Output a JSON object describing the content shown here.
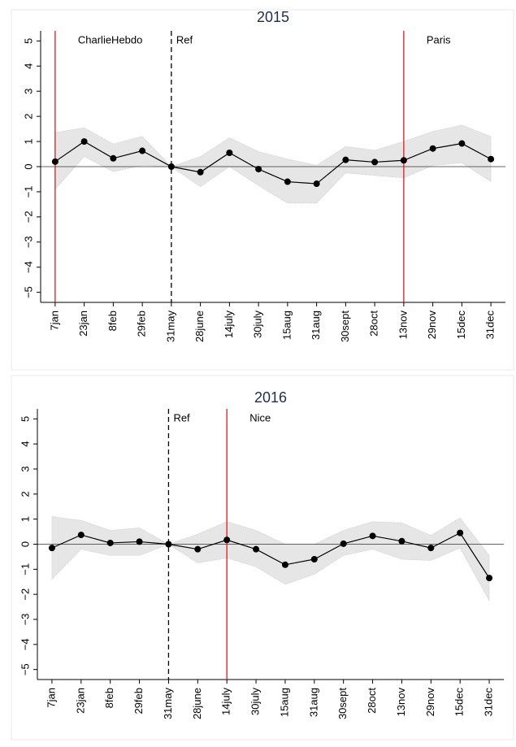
{
  "chart_data": [
    {
      "type": "line",
      "title": "2015",
      "categories": [
        "7jan",
        "23jan",
        "8feb",
        "29feb",
        "31may",
        "28june",
        "14july",
        "30july",
        "15aug",
        "31aug",
        "30sept",
        "28oct",
        "13nov",
        "29nov",
        "15dec",
        "31dec"
      ],
      "values": [
        0.2,
        1.0,
        0.33,
        0.63,
        0,
        -0.22,
        0.55,
        -0.1,
        -0.6,
        -0.68,
        0.27,
        0.18,
        0.25,
        0.72,
        0.92,
        0.3
      ],
      "upper": [
        1.35,
        1.55,
        0.9,
        1.2,
        0,
        0.4,
        1.15,
        0.6,
        0.3,
        0.05,
        0.8,
        0.65,
        1.0,
        1.4,
        1.65,
        1.2
      ],
      "lower": [
        -0.9,
        0.4,
        -0.2,
        0.05,
        0,
        -0.8,
        0,
        -0.75,
        -1.45,
        -1.45,
        -0.25,
        -0.35,
        -0.45,
        0.05,
        0.15,
        -0.6
      ],
      "color": "#000000",
      "band_color": "#e6e6e6",
      "hline": 0,
      "ylim": [
        -5.4,
        5.4
      ],
      "yticks": [
        {
          "value": -5,
          "label": "−5"
        },
        {
          "value": -4,
          "label": "−4"
        },
        {
          "value": -3,
          "label": "−3"
        },
        {
          "value": -2,
          "label": "−2"
        },
        {
          "value": -1,
          "label": "−1"
        },
        0,
        1,
        2,
        3,
        4,
        5
      ],
      "annotations": [
        {
          "text": "CharlieHebdo",
          "at": "7jan",
          "color": "#e8161c",
          "style": "solid"
        },
        {
          "text": "Ref",
          "at": "31may",
          "color": "#000000",
          "style": "dashed"
        },
        {
          "text": "Paris",
          "at": "13nov",
          "color": "#e8161c",
          "style": "solid"
        }
      ]
    },
    {
      "type": "line",
      "title": "2016",
      "categories": [
        "7jan",
        "23jan",
        "8feb",
        "29feb",
        "31may",
        "28june",
        "14july",
        "30july",
        "15aug",
        "31aug",
        "30sept",
        "28oct",
        "13nov",
        "29nov",
        "15dec",
        "31dec"
      ],
      "values": [
        -0.15,
        0.37,
        0.05,
        0.1,
        0,
        -0.2,
        0.17,
        -0.2,
        -0.82,
        -0.6,
        0.02,
        0.33,
        0.12,
        -0.15,
        0.45,
        -1.35
      ],
      "upper": [
        1.1,
        0.95,
        0.55,
        0.65,
        0,
        0.4,
        0.9,
        0.55,
        0,
        0,
        0.55,
        0.9,
        0.85,
        0.35,
        1.05,
        -0.45
      ],
      "lower": [
        -1.4,
        -0.2,
        -0.45,
        -0.45,
        0,
        -0.75,
        -0.55,
        -0.9,
        -1.6,
        -1.2,
        -0.45,
        -0.2,
        -0.6,
        -0.65,
        -0.15,
        -2.25
      ],
      "color": "#000000",
      "band_color": "#e6e6e6",
      "hline": 0,
      "ylim": [
        -5.4,
        5.4
      ],
      "yticks": [
        {
          "value": -5,
          "label": "−5"
        },
        {
          "value": -4,
          "label": "−4"
        },
        {
          "value": -3,
          "label": "−3"
        },
        {
          "value": -2,
          "label": "−2"
        },
        {
          "value": -1,
          "label": "−1"
        },
        0,
        1,
        2,
        3,
        4,
        5
      ],
      "annotations": [
        {
          "text": "Ref",
          "at": "31may",
          "color": "#000000",
          "style": "dashed"
        },
        {
          "text": "Nice",
          "at": "14july",
          "color": "#e8161c",
          "style": "solid"
        }
      ]
    }
  ]
}
